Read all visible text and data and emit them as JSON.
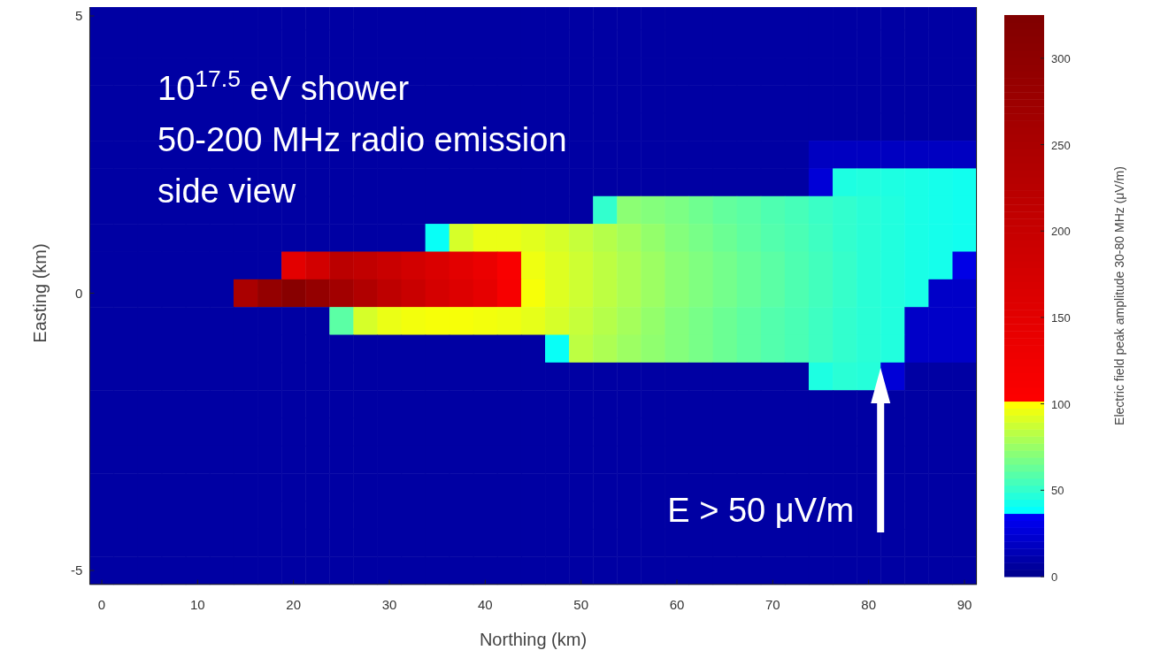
{
  "chart_data": {
    "type": "heatmap",
    "xlabel": "Northing (km)",
    "ylabel": "Easting (km)",
    "clabel": "Electric field peak amplitude 30-80 MHz (μV/m)",
    "categories": [
      "0",
      null,
      null,
      null,
      "10",
      null,
      null,
      null,
      "20",
      null,
      null,
      null,
      "30",
      null,
      null,
      null,
      "40",
      null,
      null,
      null,
      "50",
      null,
      null,
      null,
      "60",
      null,
      null,
      null,
      "70",
      null,
      null,
      null,
      "80",
      null,
      null,
      null,
      "90"
    ],
    "y_categories": [
      "5",
      null,
      null,
      null,
      null,
      null,
      null,
      null,
      null,
      null,
      "0",
      null,
      null,
      null,
      null,
      null,
      null,
      null,
      null,
      null,
      "-5"
    ],
    "clim": [
      0,
      325
    ],
    "cticks": [
      0,
      50,
      100,
      150,
      200,
      250,
      300
    ],
    "cells": [
      [
        8,
        8,
        8,
        8,
        8,
        8,
        8,
        8,
        8,
        8,
        8,
        8,
        8,
        8,
        8,
        8,
        8,
        8,
        8,
        8,
        8,
        8,
        8,
        8,
        8,
        8,
        8,
        8,
        8,
        8,
        8,
        8,
        8,
        8,
        8,
        8,
        8
      ],
      [
        8,
        8,
        8,
        8,
        8,
        8,
        8,
        8,
        8,
        8,
        8,
        8,
        8,
        8,
        8,
        8,
        8,
        8,
        8,
        8,
        8,
        8,
        8,
        8,
        8,
        8,
        8,
        8,
        8,
        8,
        8,
        8,
        8,
        8,
        8,
        8,
        8
      ],
      [
        8,
        8,
        8,
        8,
        8,
        8,
        8,
        8,
        8,
        8,
        8,
        8,
        8,
        8,
        8,
        8,
        8,
        8,
        8,
        8,
        8,
        8,
        8,
        8,
        8,
        8,
        8,
        8,
        8,
        8,
        8,
        8,
        8,
        8,
        8,
        8,
        8
      ],
      [
        8,
        8,
        8,
        8,
        8,
        8,
        8,
        8,
        8,
        8,
        8,
        8,
        8,
        8,
        8,
        8,
        8,
        8,
        8,
        8,
        8,
        8,
        8,
        8,
        8,
        8,
        8,
        8,
        8,
        8,
        8,
        8,
        8,
        8,
        8,
        8,
        8
      ],
      [
        8,
        8,
        8,
        8,
        8,
        8,
        8,
        8,
        8,
        8,
        8,
        8,
        8,
        8,
        8,
        8,
        8,
        8,
        8,
        8,
        8,
        8,
        8,
        8,
        8,
        8,
        8,
        8,
        8,
        8,
        8,
        8,
        8,
        8,
        8,
        8,
        8
      ],
      [
        8,
        8,
        8,
        8,
        8,
        8,
        8,
        8,
        8,
        8,
        8,
        8,
        8,
        8,
        8,
        8,
        8,
        8,
        8,
        8,
        8,
        8,
        8,
        8,
        8,
        8,
        8,
        8,
        8,
        8,
        18,
        18,
        18,
        18,
        18,
        18,
        18
      ],
      [
        8,
        8,
        8,
        8,
        8,
        8,
        8,
        8,
        8,
        8,
        8,
        8,
        8,
        8,
        8,
        8,
        8,
        8,
        8,
        8,
        8,
        8,
        8,
        8,
        8,
        8,
        8,
        8,
        8,
        8,
        25,
        45,
        46,
        45,
        44,
        43,
        42
      ],
      [
        8,
        8,
        8,
        8,
        8,
        8,
        8,
        8,
        8,
        8,
        8,
        8,
        8,
        8,
        8,
        8,
        8,
        8,
        8,
        8,
        8,
        50,
        72,
        70,
        68,
        65,
        62,
        60,
        57,
        55,
        52,
        50,
        48,
        46,
        44,
        43,
        42
      ],
      [
        8,
        8,
        8,
        8,
        8,
        8,
        8,
        8,
        8,
        8,
        8,
        8,
        8,
        8,
        40,
        90,
        95,
        95,
        93,
        90,
        86,
        82,
        78,
        74,
        70,
        67,
        64,
        61,
        58,
        56,
        53,
        50,
        48,
        46,
        44,
        43,
        42
      ],
      [
        8,
        8,
        8,
        8,
        8,
        8,
        8,
        8,
        150,
        180,
        220,
        210,
        195,
        180,
        165,
        150,
        135,
        110,
        96,
        92,
        88,
        84,
        80,
        76,
        72,
        69,
        66,
        63,
        60,
        57,
        54,
        51,
        48,
        46,
        44,
        43,
        30
      ],
      [
        8,
        8,
        8,
        8,
        8,
        8,
        250,
        290,
        310,
        290,
        265,
        240,
        215,
        195,
        175,
        160,
        145,
        115,
        98,
        92,
        88,
        84,
        80,
        76,
        72,
        69,
        66,
        63,
        60,
        57,
        54,
        51,
        48,
        46,
        44,
        20,
        20
      ],
      [
        8,
        8,
        8,
        8,
        8,
        8,
        8,
        8,
        8,
        8,
        60,
        90,
        95,
        97,
        98,
        98,
        97,
        96,
        94,
        90,
        86,
        82,
        78,
        74,
        70,
        67,
        64,
        61,
        58,
        56,
        53,
        50,
        48,
        46,
        20,
        20,
        20
      ],
      [
        8,
        8,
        8,
        8,
        8,
        8,
        8,
        8,
        8,
        8,
        8,
        8,
        8,
        8,
        8,
        8,
        8,
        8,
        8,
        40,
        84,
        80,
        76,
        73,
        70,
        67,
        64,
        61,
        58,
        56,
        53,
        50,
        48,
        46,
        20,
        20,
        20
      ],
      [
        8,
        8,
        8,
        8,
        8,
        8,
        8,
        8,
        8,
        8,
        8,
        8,
        8,
        8,
        8,
        8,
        8,
        8,
        8,
        8,
        8,
        8,
        8,
        8,
        8,
        8,
        8,
        8,
        8,
        8,
        45,
        48,
        47,
        25,
        8,
        8,
        8
      ],
      [
        8,
        8,
        8,
        8,
        8,
        8,
        8,
        8,
        8,
        8,
        8,
        8,
        8,
        8,
        8,
        8,
        8,
        8,
        8,
        8,
        8,
        8,
        8,
        8,
        8,
        8,
        8,
        8,
        8,
        8,
        8,
        8,
        8,
        8,
        8,
        8,
        8
      ],
      [
        8,
        8,
        8,
        8,
        8,
        8,
        8,
        8,
        8,
        8,
        8,
        8,
        8,
        8,
        8,
        8,
        8,
        8,
        8,
        8,
        8,
        8,
        8,
        8,
        8,
        8,
        8,
        8,
        8,
        8,
        8,
        8,
        8,
        8,
        8,
        8,
        8
      ],
      [
        8,
        8,
        8,
        8,
        8,
        8,
        8,
        8,
        8,
        8,
        8,
        8,
        8,
        8,
        8,
        8,
        8,
        8,
        8,
        8,
        8,
        8,
        8,
        8,
        8,
        8,
        8,
        8,
        8,
        8,
        8,
        8,
        8,
        8,
        8,
        8,
        8
      ],
      [
        8,
        8,
        8,
        8,
        8,
        8,
        8,
        8,
        8,
        8,
        8,
        8,
        8,
        8,
        8,
        8,
        8,
        8,
        8,
        8,
        8,
        8,
        8,
        8,
        8,
        8,
        8,
        8,
        8,
        8,
        8,
        8,
        8,
        8,
        8,
        8,
        8
      ],
      [
        8,
        8,
        8,
        8,
        8,
        8,
        8,
        8,
        8,
        8,
        8,
        8,
        8,
        8,
        8,
        8,
        8,
        8,
        8,
        8,
        8,
        8,
        8,
        8,
        8,
        8,
        8,
        8,
        8,
        8,
        8,
        8,
        8,
        8,
        8,
        8,
        8
      ],
      [
        8,
        8,
        8,
        8,
        8,
        8,
        8,
        8,
        8,
        8,
        8,
        8,
        8,
        8,
        8,
        8,
        8,
        8,
        8,
        8,
        8,
        8,
        8,
        8,
        8,
        8,
        8,
        8,
        8,
        8,
        8,
        8,
        8,
        8,
        8,
        8,
        8
      ],
      [
        8,
        8,
        8,
        8,
        8,
        8,
        8,
        8,
        8,
        8,
        8,
        8,
        8,
        8,
        8,
        8,
        8,
        8,
        8,
        8,
        8,
        8,
        8,
        8,
        8,
        8,
        8,
        8,
        8,
        8,
        8,
        8,
        8,
        8,
        8,
        8,
        8
      ]
    ],
    "annotations": [
      "10$^{17.5}$ eV shower",
      "50-200 MHz radio emission",
      "side view",
      "E > 50 μV/m"
    ]
  }
}
